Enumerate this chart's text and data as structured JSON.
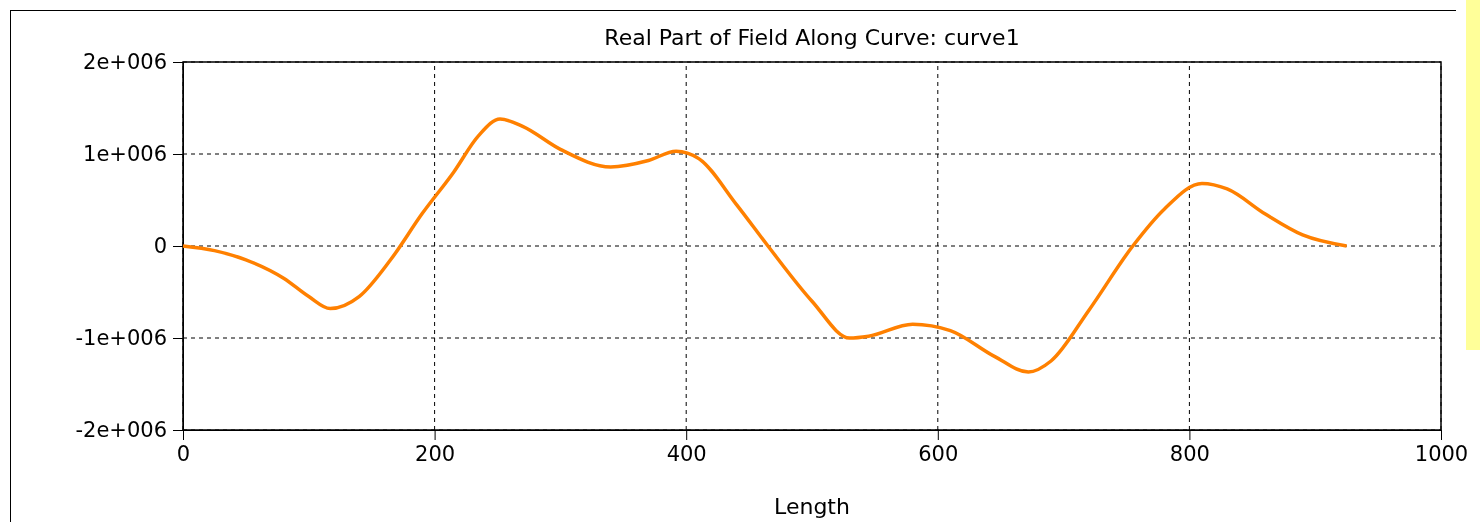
{
  "chart_data": {
    "type": "line",
    "title": "Real Part of Field Along Curve: curve1",
    "xlabel": "Length",
    "xlim": [
      0,
      1000
    ],
    "xticks": [
      0,
      200,
      400,
      600,
      800,
      1000
    ],
    "ylim": [
      -2000000,
      2000000
    ],
    "yticks": [
      {
        "value": -2000000,
        "label": "-2e+006"
      },
      {
        "value": -1000000,
        "label": "-1e+006"
      },
      {
        "value": 0,
        "label": "0"
      },
      {
        "value": 1000000,
        "label": "1e+006"
      },
      {
        "value": 2000000,
        "label": "2e+006"
      }
    ],
    "grid": true,
    "line_style": "solid",
    "series": [
      {
        "color": "#ff8000",
        "x": [
          0,
          25,
          50,
          80,
          100,
          117,
          140,
          165,
          190,
          215,
          235,
          252,
          270,
          300,
          340,
          370,
          392,
          410,
          440,
          465,
          500,
          530,
          545,
          580,
          610,
          645,
          672,
          690,
          720,
          755,
          780,
          810,
          830,
          860,
          890,
          925
        ],
        "values": [
          0,
          -50000,
          -150000,
          -350000,
          -550000,
          -680000,
          -550000,
          -150000,
          350000,
          800000,
          1200000,
          1380000,
          1300000,
          1050000,
          860000,
          930000,
          1030000,
          950000,
          450000,
          0,
          -600000,
          -1000000,
          -980000,
          -850000,
          -920000,
          -1200000,
          -1370000,
          -1250000,
          -700000,
          0,
          400000,
          680000,
          620000,
          350000,
          120000,
          0
        ]
      }
    ]
  }
}
